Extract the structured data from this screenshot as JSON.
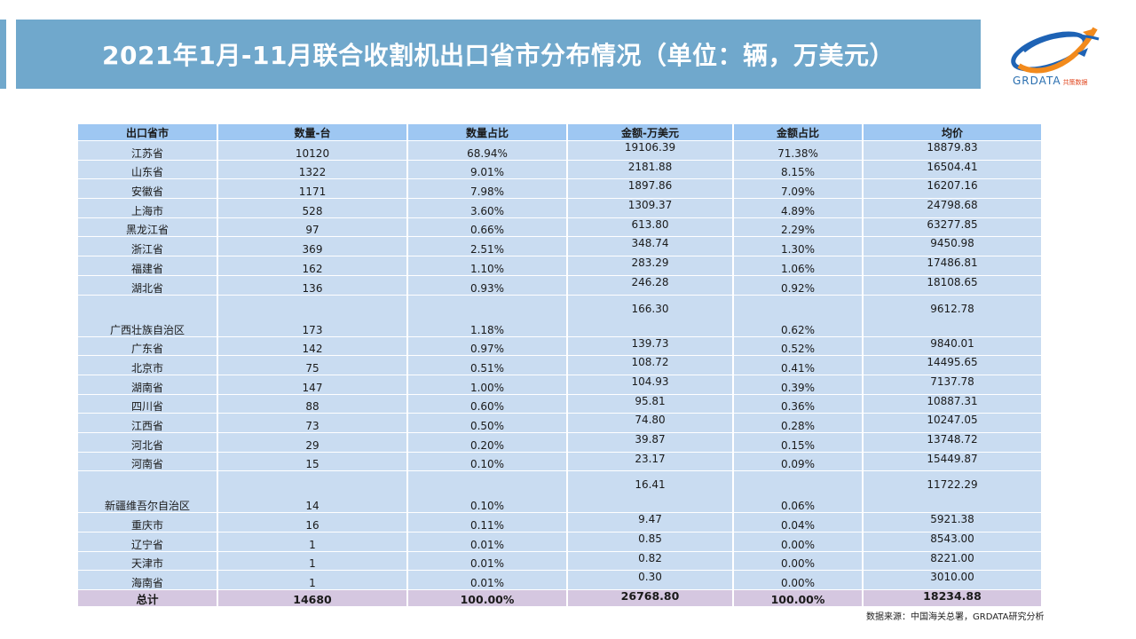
{
  "title": "2021年1月-11月联合收割机出口省市分布情况（单位：辆，万美元）",
  "logo": {
    "text": "GRDATA",
    "subtext": "共策数据"
  },
  "table": {
    "headers": [
      "出口省市",
      "数量-台",
      "数量占比",
      "金额-万美元",
      "金额占比",
      "均价"
    ],
    "rows": [
      [
        "江苏省",
        "10120",
        "68.94%",
        "19106.39",
        "71.38%",
        "18879.83"
      ],
      [
        "山东省",
        "1322",
        "9.01%",
        "2181.88",
        "8.15%",
        "16504.41"
      ],
      [
        "安徽省",
        "1171",
        "7.98%",
        "1897.86",
        "7.09%",
        "16207.16"
      ],
      [
        "上海市",
        "528",
        "3.60%",
        "1309.37",
        "4.89%",
        "24798.68"
      ],
      [
        "黑龙江省",
        "97",
        "0.66%",
        "613.80",
        "2.29%",
        "63277.85"
      ],
      [
        "浙江省",
        "369",
        "2.51%",
        "348.74",
        "1.30%",
        "9450.98"
      ],
      [
        "福建省",
        "162",
        "1.10%",
        "283.29",
        "1.06%",
        "17486.81"
      ],
      [
        "湖北省",
        "136",
        "0.93%",
        "246.28",
        "0.92%",
        "18108.65"
      ],
      [
        "广西壮族自治区",
        "173",
        "1.18%",
        "166.30",
        "0.62%",
        "9612.78"
      ],
      [
        "广东省",
        "142",
        "0.97%",
        "139.73",
        "0.52%",
        "9840.01"
      ],
      [
        "北京市",
        "75",
        "0.51%",
        "108.72",
        "0.41%",
        "14495.65"
      ],
      [
        "湖南省",
        "147",
        "1.00%",
        "104.93",
        "0.39%",
        "7137.78"
      ],
      [
        "四川省",
        "88",
        "0.60%",
        "95.81",
        "0.36%",
        "10887.31"
      ],
      [
        "江西省",
        "73",
        "0.50%",
        "74.80",
        "0.28%",
        "10247.05"
      ],
      [
        "河北省",
        "29",
        "0.20%",
        "39.87",
        "0.15%",
        "13748.72"
      ],
      [
        "河南省",
        "15",
        "0.10%",
        "23.17",
        "0.09%",
        "15449.87"
      ],
      [
        "新疆维吾尔自治区",
        "14",
        "0.10%",
        "16.41",
        "0.06%",
        "11722.29"
      ],
      [
        "重庆市",
        "16",
        "0.11%",
        "9.47",
        "0.04%",
        "5921.38"
      ],
      [
        "辽宁省",
        "1",
        "0.01%",
        "0.85",
        "0.00%",
        "8543.00"
      ],
      [
        "天津市",
        "1",
        "0.01%",
        "0.82",
        "0.00%",
        "8221.00"
      ],
      [
        "海南省",
        "1",
        "0.01%",
        "0.30",
        "0.00%",
        "3010.00"
      ]
    ],
    "total": [
      "总计",
      "14680",
      "100.00%",
      "26768.80",
      "100.00%",
      "18234.88"
    ]
  },
  "source": "数据来源：中国海关总署，GRDATA研究分析",
  "colors": {
    "title_bar": "#70a8cc",
    "header_bg": "#9ec7f2",
    "row_bg": "#c9dcf1",
    "total_bg": "#d5c7e0"
  }
}
